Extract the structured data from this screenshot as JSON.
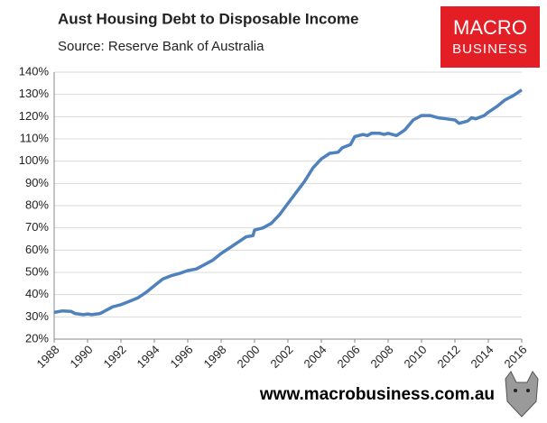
{
  "chart_data": {
    "type": "line",
    "title": "Aust Housing Debt to Disposable Income",
    "subtitle": "Source: Reserve Bank of Australia",
    "logo": [
      "MACRO",
      "BUSINESS"
    ],
    "footer": "www.macrobusiness.com.au",
    "x": [
      1988,
      1988.5,
      1989,
      1989.25,
      1989.75,
      1990,
      1990.25,
      1990.75,
      1991,
      1991.5,
      1992,
      1992.5,
      1993,
      1993.5,
      1994,
      1994.5,
      1995,
      1995.5,
      1996,
      1996.5,
      1997,
      1997.5,
      1998,
      1998.5,
      1999,
      1999.5,
      1999.9,
      2000,
      2000.5,
      2001,
      2001.5,
      2002,
      2002.5,
      2003,
      2003.5,
      2004,
      2004.5,
      2005,
      2005.25,
      2005.75,
      2006,
      2006.5,
      2006.75,
      2007,
      2007.5,
      2007.75,
      2008,
      2008.5,
      2009,
      2009.5,
      2010,
      2010.5,
      2011,
      2011.5,
      2012,
      2012.25,
      2012.75,
      2013,
      2013.25,
      2013.75,
      2014,
      2014.5,
      2015,
      2015.5,
      2016
    ],
    "series": [
      {
        "name": "Housing debt to disposable income",
        "color": "#4f81bd",
        "values": [
          32,
          32.7,
          32.5,
          31.5,
          31,
          31.3,
          31,
          31.5,
          32.5,
          34.5,
          35.5,
          37,
          38.5,
          41,
          44,
          47,
          48.5,
          49.5,
          50.8,
          51.5,
          53.5,
          55.5,
          58.5,
          61,
          63.5,
          66,
          66.5,
          69,
          70,
          72,
          76,
          81,
          86,
          91,
          97,
          101,
          103.5,
          104,
          106,
          107.5,
          111,
          112,
          111.5,
          112.5,
          112.5,
          112,
          112.5,
          111.5,
          114,
          118.5,
          120.5,
          120.5,
          119.5,
          119,
          118.5,
          117,
          118,
          119.5,
          119,
          120.5,
          122,
          124.5,
          127.5,
          129.5,
          132
        ]
      }
    ],
    "xlim": [
      1988,
      2016
    ],
    "xticks": [
      1988,
      1990,
      1992,
      1994,
      1996,
      1998,
      2000,
      2002,
      2004,
      2006,
      2008,
      2010,
      2012,
      2014,
      2016
    ],
    "ylim": [
      20,
      140
    ],
    "yticks": [
      {
        "value": 20,
        "label": "20%"
      },
      {
        "value": 30,
        "label": "30%"
      },
      {
        "value": 40,
        "label": "40%"
      },
      {
        "value": 50,
        "label": "50%"
      },
      {
        "value": 60,
        "label": "60%"
      },
      {
        "value": 70,
        "label": "70%"
      },
      {
        "value": 80,
        "label": "80%"
      },
      {
        "value": 90,
        "label": "90%"
      },
      {
        "value": 100,
        "label": "100%"
      },
      {
        "value": 110,
        "label": "110%"
      },
      {
        "value": 120,
        "label": "120%"
      },
      {
        "value": 130,
        "label": "130%"
      },
      {
        "value": 140,
        "label": "140%"
      }
    ],
    "grid": true
  }
}
